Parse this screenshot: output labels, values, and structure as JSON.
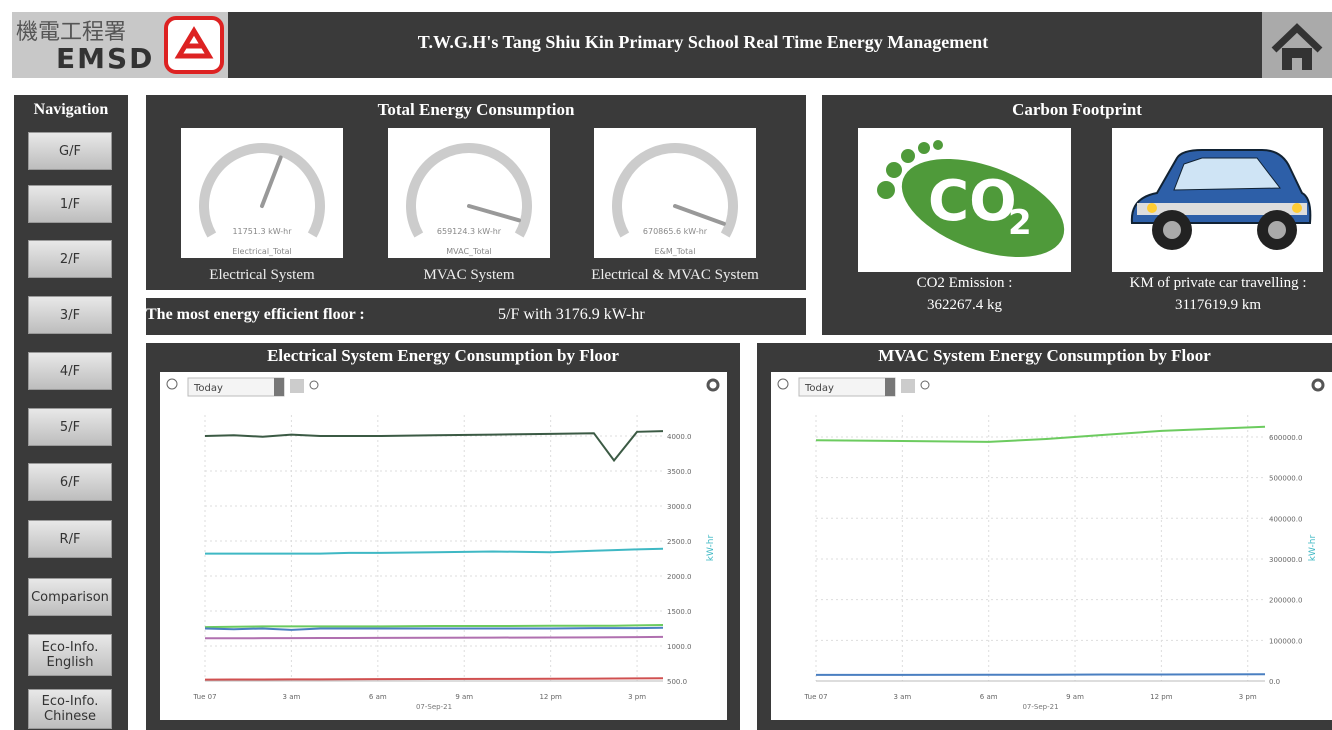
{
  "header": {
    "logo_cn": "機電工程署",
    "logo_en": "EMSD",
    "title": "T.W.G.H's Tang Shiu Kin Primary School Real Time Energy Management"
  },
  "navigation": {
    "title": "Navigation",
    "items": [
      "G/F",
      "1/F",
      "2/F",
      "3/F",
      "4/F",
      "5/F",
      "6/F",
      "R/F",
      "Comparison",
      "Eco-Info. English",
      "Eco-Info. Chinese"
    ]
  },
  "energy": {
    "title": "Total Energy Consumption",
    "gauges": [
      {
        "name": "Electrical_Total",
        "value": 11751.3,
        "value_label": "11751.3 kW-hr",
        "range": [
          0,
          20000
        ],
        "caption": "Electrical System"
      },
      {
        "name": "MVAC_Total",
        "value": 659124.3,
        "value_label": "659124.3 kW-hr",
        "range": [
          0,
          700000
        ],
        "caption": "MVAC System"
      },
      {
        "name": "E&M_Total",
        "value": 670865.6,
        "value_label": "670865.6 kW-hr",
        "range": [
          0,
          700000
        ],
        "caption": "Electrical & MVAC System"
      }
    ]
  },
  "efficient": {
    "label": "The most energy efficient floor :",
    "value": "5/F with 3176.9 kW-hr"
  },
  "carbon": {
    "title": "Carbon Footprint",
    "icon_text": "CO",
    "icon_sub": "2",
    "co2_label": "CO2 Emission :",
    "co2_value": "362267.4 kg",
    "km_label": "KM of private car travelling :",
    "km_value": "3117619.9 km"
  },
  "charts": [
    {
      "type": "line",
      "title": "Electrical System Energy Consumption by Floor",
      "range_option": "Today",
      "x": [
        0,
        1,
        2,
        3,
        4,
        5,
        6,
        8,
        10,
        12,
        13.5,
        14.2,
        15,
        15.9
      ],
      "xlim": [
        0,
        15.9
      ],
      "xticks": [
        {
          "value": 0,
          "label": "Tue 07"
        },
        {
          "value": 3,
          "label": "3 am"
        },
        {
          "value": 6,
          "label": "6 am"
        },
        {
          "value": 9,
          "label": "9 am"
        },
        {
          "value": 12,
          "label": "12 pm"
        },
        {
          "value": 15,
          "label": "3 pm"
        }
      ],
      "x_sublabel": "07-Sep-21",
      "ylim": [
        500,
        4300
      ],
      "yticks": [
        {
          "value": 500,
          "label": "500.0"
        },
        {
          "value": 1000,
          "label": "1000.0"
        },
        {
          "value": 1500,
          "label": "1500.0"
        },
        {
          "value": 2000,
          "label": "2000.0"
        },
        {
          "value": 2500,
          "label": "2500.0"
        },
        {
          "value": 3000,
          "label": "3000.0"
        },
        {
          "value": 3500,
          "label": "3500.0"
        },
        {
          "value": 4000,
          "label": "4000.0"
        }
      ],
      "y_label": "kW-hr",
      "grid": true,
      "series": [
        {
          "color": "#3b5a44",
          "values": [
            4000,
            4010,
            3990,
            4020,
            4000,
            4000,
            4000,
            4010,
            4020,
            4030,
            4040,
            3650,
            4060,
            4070
          ]
        },
        {
          "color": "#3fb8c4",
          "values": [
            2320,
            2320,
            2320,
            2320,
            2320,
            2330,
            2330,
            2340,
            2350,
            2340,
            2360,
            2370,
            2380,
            2390
          ]
        },
        {
          "color": "#6ccb5f",
          "values": [
            1270,
            1275,
            1280,
            1280,
            1280,
            1280,
            1280,
            1285,
            1285,
            1290,
            1290,
            1290,
            1295,
            1300
          ]
        },
        {
          "color": "#4a7fc1",
          "values": [
            1250,
            1240,
            1250,
            1230,
            1250,
            1250,
            1250,
            1250,
            1250,
            1250,
            1255,
            1255,
            1255,
            1260
          ]
        },
        {
          "color": "#b070b0",
          "values": [
            1110,
            1110,
            1112,
            1112,
            1114,
            1115,
            1116,
            1118,
            1120,
            1122,
            1124,
            1125,
            1127,
            1130
          ]
        },
        {
          "color": "#d05050",
          "values": [
            520,
            521,
            522,
            523,
            524,
            525,
            526,
            528,
            530,
            532,
            534,
            535,
            537,
            540
          ]
        }
      ]
    },
    {
      "type": "line",
      "title": "MVAC System Energy Consumption by Floor",
      "range_option": "Today",
      "x": [
        0,
        3,
        6,
        8,
        10,
        12,
        15.6
      ],
      "xlim": [
        0,
        15.6
      ],
      "xticks": [
        {
          "value": 0,
          "label": "Tue 07"
        },
        {
          "value": 3,
          "label": "3 am"
        },
        {
          "value": 6,
          "label": "6 am"
        },
        {
          "value": 9,
          "label": "9 am"
        },
        {
          "value": 12,
          "label": "12 pm"
        },
        {
          "value": 15,
          "label": "3 pm"
        }
      ],
      "x_sublabel": "07-Sep-21",
      "ylim": [
        0,
        654000
      ],
      "yticks": [
        {
          "value": 0,
          "label": "0.0"
        },
        {
          "value": 100000,
          "label": "100000.0"
        },
        {
          "value": 200000,
          "label": "200000.0"
        },
        {
          "value": 300000,
          "label": "300000.0"
        },
        {
          "value": 400000,
          "label": "400000.0"
        },
        {
          "value": 500000,
          "label": "500000.0"
        },
        {
          "value": 600000,
          "label": "600000.0"
        }
      ],
      "y_label": "kW-hr",
      "grid": true,
      "series": [
        {
          "color": "#6ccb5f",
          "values": [
            592000,
            590000,
            588000,
            595000,
            605000,
            615000,
            625000
          ]
        },
        {
          "color": "#4a7fc1",
          "values": [
            15000,
            15000,
            15500,
            15500,
            16000,
            16000,
            16500
          ]
        }
      ]
    }
  ]
}
